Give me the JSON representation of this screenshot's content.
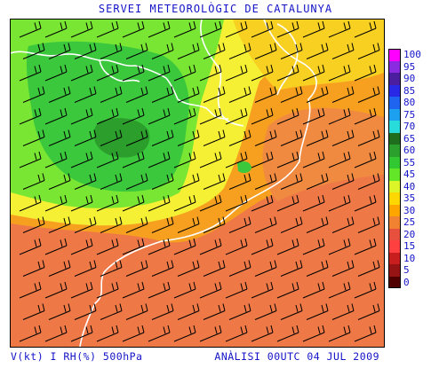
{
  "header": {
    "title": "SERVEI METEOROLÒGIC DE CATALUNYA"
  },
  "footer": {
    "left": "V(kt) I RH(%) 500hPa",
    "right": "ANÀLISI 00UTC 04 JUL 2009"
  },
  "legend": {
    "items": [
      {
        "label": "100",
        "color": "#ff00ff"
      },
      {
        "label": "95",
        "color": "#8a2be2"
      },
      {
        "label": "90",
        "color": "#4b1ea0"
      },
      {
        "label": "85",
        "color": "#2828e6"
      },
      {
        "label": "80",
        "color": "#1e64f0"
      },
      {
        "label": "75",
        "color": "#1ea0f0"
      },
      {
        "label": "70",
        "color": "#28dcdc"
      },
      {
        "label": "65",
        "color": "#1e6e1e"
      },
      {
        "label": "60",
        "color": "#2ca02c"
      },
      {
        "label": "55",
        "color": "#32c832"
      },
      {
        "label": "45",
        "color": "#64e628"
      },
      {
        "label": "40",
        "color": "#dcf528"
      },
      {
        "label": "35",
        "color": "#ffd700"
      },
      {
        "label": "30",
        "color": "#ffa500"
      },
      {
        "label": "25",
        "color": "#f08232"
      },
      {
        "label": "20",
        "color": "#e6503c"
      },
      {
        "label": "15",
        "color": "#ff4040"
      },
      {
        "label": "10",
        "color": "#c81e1e"
      },
      {
        "label": "5",
        "color": "#961414"
      },
      {
        "label": "0",
        "color": "#500000"
      }
    ]
  }
}
